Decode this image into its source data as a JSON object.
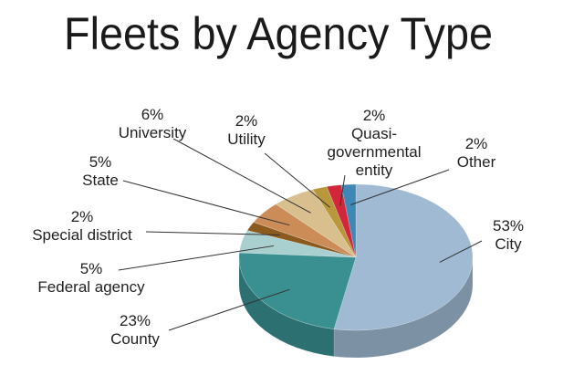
{
  "chart_data": {
    "type": "pie",
    "title": "Fleets by Agency Type",
    "categories": [
      "City",
      "County",
      "Federal agency",
      "Special district",
      "State",
      "University",
      "Utility",
      "Quasi-governmental entity",
      "Other"
    ],
    "values": [
      53,
      23,
      5,
      2,
      5,
      6,
      2,
      2,
      2
    ],
    "value_labels": [
      "53%",
      "23%",
      "5%",
      "2%",
      "5%",
      "6%",
      "2%",
      "2%",
      "2%"
    ],
    "colors": [
      "#9fbad2",
      "#3a8f91",
      "#a9d0cf",
      "#8c5a1e",
      "#cc8c57",
      "#d9bf8e",
      "#b8983a",
      "#d2263b",
      "#3f88b6"
    ]
  }
}
